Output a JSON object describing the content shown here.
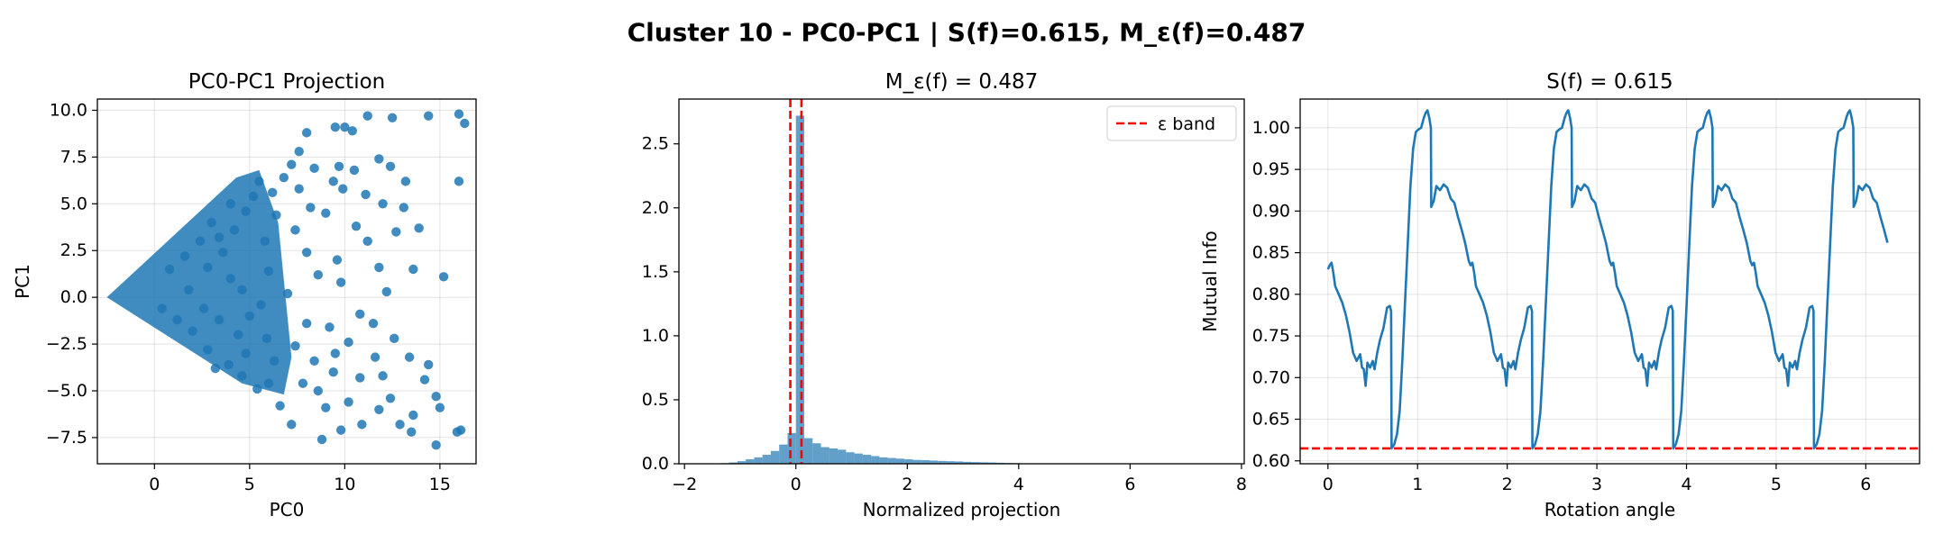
{
  "suptitle": "Cluster 10 - PC0-PC1 | S(f)=0.615, M_ε(f)=0.487",
  "chart_data": [
    {
      "type": "scatter",
      "title": "PC0-PC1 Projection",
      "xlabel": "PC0",
      "ylabel": "PC1",
      "xlim": [
        -3,
        16.9
      ],
      "ylim": [
        -8.9,
        10.6
      ],
      "xticks": [
        0,
        5,
        10,
        15
      ],
      "xtick_labels": [
        "0",
        "5",
        "10",
        "15"
      ],
      "yticks": [
        -7.5,
        -5.0,
        -2.5,
        0.0,
        2.5,
        5.0,
        7.5,
        10.0
      ],
      "ytick_labels": [
        "−7.5",
        "−5.0",
        "−2.5",
        "0.0",
        "2.5",
        "5.0",
        "7.5",
        "10.0"
      ],
      "grid": true,
      "color": "#1f77b4",
      "points": [
        [
          8.0,
          8.8
        ],
        [
          9.5,
          9.1
        ],
        [
          10.0,
          9.1
        ],
        [
          11.2,
          9.7
        ],
        [
          12.5,
          9.6
        ],
        [
          14.4,
          9.7
        ],
        [
          16.0,
          9.8
        ],
        [
          16.3,
          9.3
        ],
        [
          7.2,
          7.1
        ],
        [
          8.4,
          6.9
        ],
        [
          9.7,
          7.0
        ],
        [
          10.5,
          6.8
        ],
        [
          11.8,
          7.4
        ],
        [
          12.4,
          7.0
        ],
        [
          13.2,
          6.2
        ],
        [
          16.0,
          6.2
        ],
        [
          9.9,
          5.8
        ],
        [
          11.1,
          5.5
        ],
        [
          12.0,
          5.0
        ],
        [
          13.1,
          4.8
        ],
        [
          13.9,
          3.7
        ],
        [
          12.7,
          3.5
        ],
        [
          11.2,
          3.0
        ],
        [
          10.6,
          3.8
        ],
        [
          9.0,
          4.5
        ],
        [
          9.6,
          2.0
        ],
        [
          11.8,
          1.6
        ],
        [
          13.6,
          1.5
        ],
        [
          15.2,
          1.1
        ],
        [
          12.2,
          0.3
        ],
        [
          10.8,
          -0.9
        ],
        [
          9.8,
          0.8
        ],
        [
          8.6,
          1.2
        ],
        [
          9.2,
          -1.6
        ],
        [
          11.5,
          -1.4
        ],
        [
          12.6,
          -2.2
        ],
        [
          13.4,
          -3.2
        ],
        [
          10.2,
          -2.4
        ],
        [
          11.6,
          -3.2
        ],
        [
          9.5,
          -3.0
        ],
        [
          9.4,
          -4.0
        ],
        [
          10.8,
          -4.3
        ],
        [
          12.0,
          -4.2
        ],
        [
          14.2,
          -4.4
        ],
        [
          14.8,
          -5.3
        ],
        [
          15.0,
          -5.9
        ],
        [
          12.4,
          -5.4
        ],
        [
          10.2,
          -5.6
        ],
        [
          9.0,
          -5.9
        ],
        [
          8.6,
          -5.0
        ],
        [
          10.9,
          -6.8
        ],
        [
          9.8,
          -7.1
        ],
        [
          12.9,
          -6.8
        ],
        [
          13.5,
          -7.2
        ],
        [
          14.8,
          -7.9
        ],
        [
          16.1,
          -7.1
        ],
        [
          15.9,
          -7.2
        ],
        [
          11.8,
          -6.0
        ],
        [
          7.2,
          -6.8
        ],
        [
          6.6,
          -5.8
        ],
        [
          7.8,
          -4.6
        ],
        [
          8.4,
          -3.4
        ],
        [
          7.4,
          -2.6
        ],
        [
          8.0,
          -1.4
        ],
        [
          7.0,
          0.2
        ],
        [
          8.0,
          2.4
        ],
        [
          7.4,
          3.6
        ],
        [
          8.2,
          4.8
        ],
        [
          7.6,
          5.8
        ],
        [
          6.8,
          6.4
        ],
        [
          6.2,
          5.6
        ],
        [
          6.4,
          4.4
        ],
        [
          5.8,
          3.0
        ],
        [
          6.0,
          1.4
        ],
        [
          5.6,
          -0.4
        ],
        [
          5.9,
          -2.2
        ],
        [
          6.3,
          -3.4
        ],
        [
          6.0,
          -4.6
        ],
        [
          5.4,
          -4.9
        ],
        [
          4.6,
          -4.2
        ],
        [
          3.9,
          -3.6
        ],
        [
          4.4,
          -2.0
        ],
        [
          3.4,
          -1.2
        ],
        [
          4.0,
          1.0
        ],
        [
          3.6,
          2.4
        ],
        [
          4.2,
          3.6
        ],
        [
          4.8,
          4.6
        ],
        [
          5.2,
          5.4
        ],
        [
          5.5,
          6.2
        ],
        [
          4.0,
          5.0
        ],
        [
          3.0,
          4.0
        ],
        [
          2.4,
          3.0
        ],
        [
          1.6,
          2.2
        ],
        [
          0.8,
          1.5
        ],
        [
          1.8,
          0.4
        ],
        [
          2.6,
          -0.6
        ],
        [
          2.0,
          -1.8
        ],
        [
          1.2,
          -1.2
        ],
        [
          0.4,
          -0.6
        ],
        [
          2.8,
          -2.8
        ],
        [
          3.2,
          -3.8
        ],
        [
          4.8,
          -3.0
        ],
        [
          5.0,
          -1.0
        ],
        [
          4.6,
          0.4
        ],
        [
          2.8,
          1.6
        ],
        [
          3.4,
          3.2
        ],
        [
          13.6,
          -6.3
        ],
        [
          14.4,
          -3.6
        ],
        [
          8.8,
          -7.6
        ],
        [
          10.4,
          8.9
        ],
        [
          7.6,
          7.8
        ],
        [
          9.4,
          6.2
        ]
      ]
    },
    {
      "type": "bar",
      "title": "M_ε(f) = 0.487",
      "xlabel": "Normalized projection",
      "ylabel": "",
      "xlim": [
        -2.1,
        8.05
      ],
      "ylim": [
        0,
        2.85
      ],
      "xticks": [
        -2,
        0,
        2,
        4,
        6,
        8
      ],
      "xtick_labels": [
        "−2",
        "0",
        "2",
        "4",
        "6",
        "8"
      ],
      "yticks": [
        0.0,
        0.5,
        1.0,
        1.5,
        2.0,
        2.5
      ],
      "ytick_labels": [
        "0.0",
        "0.5",
        "1.0",
        "1.5",
        "2.0",
        "2.5"
      ],
      "grid": false,
      "color": "#1f77b4",
      "bin_width": 0.15,
      "bin_starts": [
        -1.35,
        -1.2,
        -1.05,
        -0.9,
        -0.75,
        -0.6,
        -0.45,
        -0.3,
        -0.15,
        0.0,
        0.15,
        0.3,
        0.45,
        0.6,
        0.75,
        0.9,
        1.05,
        1.2,
        1.35,
        1.5,
        1.65,
        1.8,
        1.95,
        2.1,
        2.25,
        2.4,
        2.55,
        2.7,
        2.85,
        3.0,
        3.15,
        3.3,
        3.45,
        3.6,
        3.75,
        3.9,
        4.05,
        4.2
      ],
      "values": [
        0.005,
        0.01,
        0.02,
        0.035,
        0.05,
        0.07,
        0.1,
        0.15,
        0.24,
        2.72,
        0.2,
        0.16,
        0.13,
        0.12,
        0.11,
        0.09,
        0.08,
        0.07,
        0.06,
        0.05,
        0.045,
        0.04,
        0.035,
        0.03,
        0.028,
        0.025,
        0.022,
        0.02,
        0.018,
        0.015,
        0.013,
        0.011,
        0.01,
        0.008,
        0.006,
        0.005,
        0.003,
        0.002
      ],
      "epsilon_band": [
        -0.1,
        0.1
      ],
      "band_color": "#ff0000",
      "legend": {
        "location": "upper right",
        "label": "ε band"
      }
    },
    {
      "type": "line",
      "title": "S(f) = 0.615",
      "xlabel": "Rotation angle",
      "ylabel": "Mutual Info",
      "xlim": [
        -0.31,
        6.6
      ],
      "ylim": [
        0.5965,
        1.0345
      ],
      "xticks": [
        0,
        1,
        2,
        3,
        4,
        5,
        6
      ],
      "xtick_labels": [
        "0",
        "1",
        "2",
        "3",
        "4",
        "5",
        "6"
      ],
      "yticks": [
        0.6,
        0.65,
        0.7,
        0.75,
        0.8,
        0.85,
        0.9,
        0.95,
        1.0
      ],
      "ytick_labels": [
        "0.60",
        "0.65",
        "0.70",
        "0.75",
        "0.80",
        "0.85",
        "0.90",
        "0.95",
        "1.00"
      ],
      "grid": true,
      "color": "#1f77b4",
      "threshold": 0.615,
      "threshold_color": "#ff0000",
      "period": 1.5708,
      "cycle": [
        [
          0.0,
          0.83
        ],
        [
          0.02,
          0.835
        ],
        [
          0.04,
          0.838
        ],
        [
          0.06,
          0.826
        ],
        [
          0.08,
          0.81
        ],
        [
          0.12,
          0.8
        ],
        [
          0.16,
          0.79
        ],
        [
          0.2,
          0.775
        ],
        [
          0.24,
          0.755
        ],
        [
          0.28,
          0.73
        ],
        [
          0.32,
          0.72
        ],
        [
          0.36,
          0.728
        ],
        [
          0.38,
          0.712
        ],
        [
          0.4,
          0.71
        ],
        [
          0.42,
          0.69
        ],
        [
          0.44,
          0.718
        ],
        [
          0.47,
          0.712
        ],
        [
          0.5,
          0.72
        ],
        [
          0.52,
          0.71
        ],
        [
          0.55,
          0.73
        ],
        [
          0.58,
          0.745
        ],
        [
          0.62,
          0.76
        ],
        [
          0.66,
          0.784
        ],
        [
          0.69,
          0.786
        ],
        [
          0.705,
          0.78
        ],
        [
          0.71,
          0.615
        ],
        [
          0.74,
          0.62
        ],
        [
          0.77,
          0.632
        ],
        [
          0.8,
          0.66
        ],
        [
          0.83,
          0.72
        ],
        [
          0.86,
          0.79
        ],
        [
          0.89,
          0.86
        ],
        [
          0.92,
          0.93
        ],
        [
          0.95,
          0.975
        ],
        [
          0.98,
          0.995
        ],
        [
          1.01,
          0.998
        ],
        [
          1.04,
          1.0
        ],
        [
          1.07,
          1.012
        ],
        [
          1.09,
          1.018
        ],
        [
          1.11,
          1.021
        ],
        [
          1.13,
          1.012
        ],
        [
          1.148,
          1.0
        ],
        [
          1.152,
          0.905
        ],
        [
          1.18,
          0.912
        ],
        [
          1.21,
          0.93
        ],
        [
          1.25,
          0.925
        ],
        [
          1.29,
          0.932
        ],
        [
          1.33,
          0.928
        ],
        [
          1.37,
          0.915
        ],
        [
          1.41,
          0.91
        ],
        [
          1.45,
          0.893
        ],
        [
          1.49,
          0.878
        ],
        [
          1.53,
          0.862
        ],
        [
          1.5708,
          0.84
        ]
      ]
    }
  ]
}
